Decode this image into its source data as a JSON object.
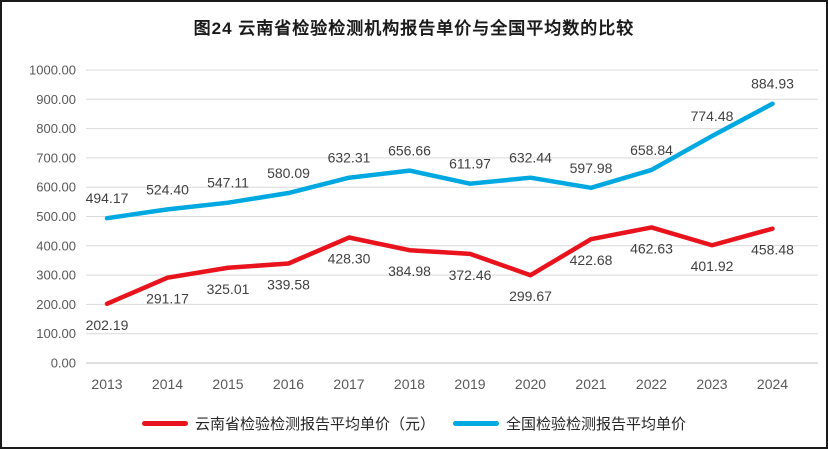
{
  "frame": {
    "background": "#ffffff",
    "border_color": "#1a1a1a"
  },
  "chart_data": {
    "type": "line",
    "title": "图24 云南省检验检测机构报告单价与全国平均数的比较",
    "categories": [
      "2013",
      "2014",
      "2015",
      "2016",
      "2017",
      "2018",
      "2019",
      "2020",
      "2021",
      "2022",
      "2023",
      "2024"
    ],
    "series": [
      {
        "name": "云南省检验检测报告平均单价（元）",
        "color": "#e8131c",
        "values": [
          202.19,
          291.17,
          325.01,
          339.58,
          428.3,
          384.98,
          372.46,
          299.67,
          422.68,
          462.63,
          401.92,
          458.48
        ],
        "data_label_position": "below"
      },
      {
        "name": "全国检验检测报告平均单价",
        "color": "#00a8e1",
        "values": [
          494.17,
          524.4,
          547.11,
          580.09,
          632.31,
          656.66,
          611.97,
          632.44,
          597.98,
          658.84,
          774.48,
          884.93
        ],
        "data_label_position": "above"
      }
    ],
    "ylim": [
      0,
      1000
    ],
    "ytick_step": 100,
    "ytick_labels": [
      "0.00",
      "100.00",
      "200.00",
      "300.00",
      "400.00",
      "500.00",
      "600.00",
      "700.00",
      "800.00",
      "900.00",
      "1000.00"
    ],
    "grid": true,
    "legend_position": "bottom",
    "data_label_decimals": 2,
    "colors": {
      "gridline": "#d9d9d9",
      "axis_line": "#bfbfbf",
      "tick_label": "#595959",
      "data_label": "#404040",
      "title": "#1a1a1a",
      "legend_text": "#262626"
    }
  }
}
